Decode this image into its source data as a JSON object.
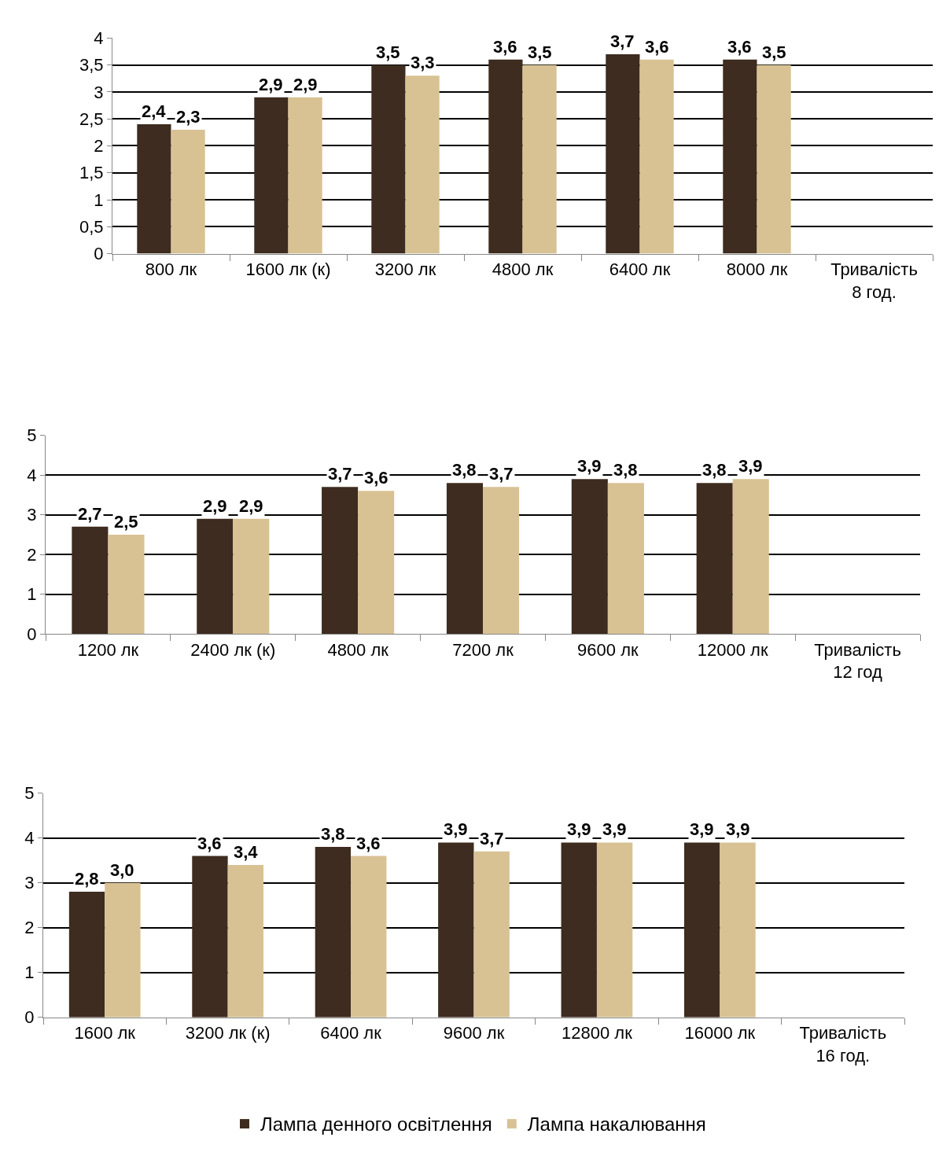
{
  "chart_data": [
    {
      "type": "bar",
      "categories": [
        "800 лк",
        "1600 лк (к)",
        "3200 лк",
        "4800 лк",
        "6400 лк",
        "8000 лк",
        "Тривалість\n8 год."
      ],
      "ylim": [
        0,
        4
      ],
      "yticks": [
        0,
        {
          "value": 0.5,
          "label": "0,5"
        },
        1,
        {
          "value": 1.5,
          "label": "1,5"
        },
        2,
        {
          "value": 2.5,
          "label": "2,5"
        },
        3,
        {
          "value": 3.5,
          "label": "3,5"
        },
        4
      ],
      "grid": "y",
      "series": [
        {
          "color": "#3d2c1f",
          "values": [
            2.4,
            2.9,
            3.5,
            3.6,
            3.7,
            3.6,
            null
          ],
          "value_labels": [
            "2,4",
            "2,9",
            "3,5",
            "3,6",
            "3,7",
            "3,6",
            null
          ]
        },
        {
          "color": "#d8c294",
          "values": [
            2.3,
            2.9,
            3.3,
            3.5,
            3.6,
            3.5,
            null
          ],
          "value_labels": [
            "2,3",
            "2,9",
            "3,3",
            "3,5",
            "3,6",
            "3,5",
            null
          ]
        }
      ]
    },
    {
      "type": "bar",
      "categories": [
        "1200 лк",
        "2400 лк (к)",
        "4800 лк",
        "7200 лк",
        "9600 лк",
        "12000 лк",
        "Тривалість\n12 год"
      ],
      "ylim": [
        0,
        5
      ],
      "yticks": [
        0,
        1,
        2,
        3,
        4,
        5
      ],
      "grid": "y",
      "series": [
        {
          "color": "#3d2c1f",
          "values": [
            2.7,
            2.9,
            3.7,
            3.8,
            3.9,
            3.8,
            null
          ],
          "value_labels": [
            "2,7",
            "2,9",
            "3,7",
            "3,8",
            "3,9",
            "3,8",
            null
          ]
        },
        {
          "color": "#d8c294",
          "values": [
            2.5,
            2.9,
            3.6,
            3.7,
            3.8,
            3.9,
            null
          ],
          "value_labels": [
            "2,5",
            "2,9",
            "3,6",
            "3,7",
            "3,8",
            "3,9",
            null
          ]
        }
      ]
    },
    {
      "type": "bar",
      "categories": [
        "1600 лк",
        "3200 лк (к)",
        "6400 лк",
        "9600 лк",
        "12800 лк",
        "16000 лк",
        "Тривалість\n16 год."
      ],
      "ylim": [
        0,
        5
      ],
      "yticks": [
        0,
        1,
        2,
        3,
        4,
        5
      ],
      "grid": "y",
      "legend": "bottom",
      "series": [
        {
          "name": "Лампа денного освітлення",
          "color": "#3d2c1f",
          "values": [
            2.8,
            3.6,
            3.8,
            3.9,
            3.9,
            3.9,
            null
          ],
          "value_labels": [
            "2,8",
            "3,6",
            "3,8",
            "3,9",
            "3,9",
            "3,9",
            null
          ]
        },
        {
          "name": "Лампа накалювання",
          "color": "#d8c294",
          "values": [
            3.0,
            3.4,
            3.6,
            3.7,
            3.9,
            3.9,
            null
          ],
          "value_labels": [
            "3,0",
            "3,4",
            "3,6",
            "3,7",
            "3,9",
            "3,9",
            null
          ]
        }
      ]
    }
  ]
}
